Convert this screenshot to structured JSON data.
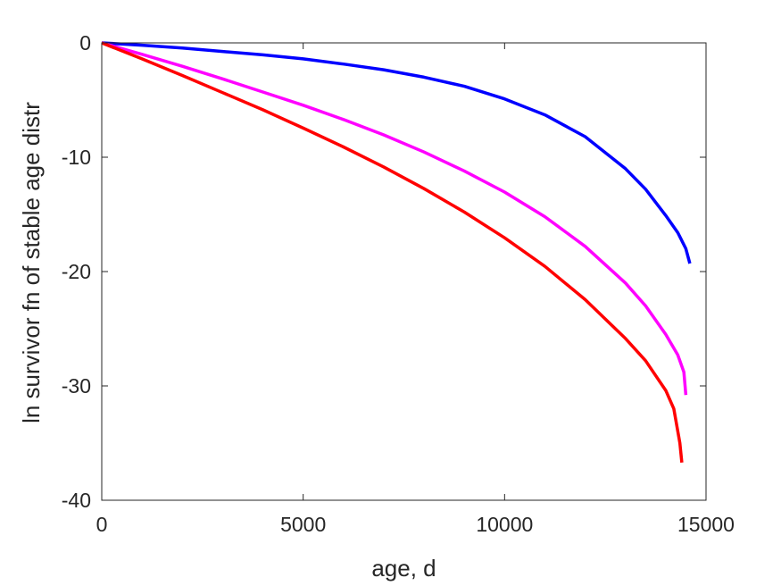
{
  "chart_data": {
    "type": "line",
    "title": "",
    "xlabel": "age, d",
    "ylabel": "ln survivor fn of stable age distr",
    "xlim": [
      0,
      15000
    ],
    "ylim": [
      -40,
      0
    ],
    "xticks": [
      0,
      5000,
      10000,
      15000
    ],
    "yticks": [
      0,
      -10,
      -20,
      -30,
      -40
    ],
    "xtick_labels": [
      "0",
      "5000",
      "10000",
      "15000"
    ],
    "ytick_labels": [
      "0",
      "-10",
      "-20",
      "-30",
      "-40"
    ],
    "grid": false,
    "series": [
      {
        "color": "#0000ff",
        "x": [
          0,
          1000,
          2000,
          3000,
          4000,
          5000,
          6000,
          7000,
          8000,
          9000,
          10000,
          11000,
          12000,
          13000,
          13500,
          14000,
          14300,
          14500,
          14600
        ],
        "y": [
          0,
          -0.2,
          -0.45,
          -0.75,
          -1.05,
          -1.4,
          -1.85,
          -2.35,
          -3.0,
          -3.8,
          -4.9,
          -6.3,
          -8.2,
          -11.0,
          -12.8,
          -15.1,
          -16.6,
          -18.0,
          -19.3
        ]
      },
      {
        "color": "#ff00ff",
        "x": [
          0,
          1000,
          2000,
          3000,
          4000,
          5000,
          6000,
          7000,
          8000,
          9000,
          10000,
          11000,
          12000,
          13000,
          13500,
          14000,
          14300,
          14450,
          14500
        ],
        "y": [
          0,
          -1.0,
          -2.05,
          -3.15,
          -4.3,
          -5.45,
          -6.7,
          -8.05,
          -9.55,
          -11.2,
          -13.05,
          -15.2,
          -17.8,
          -21.0,
          -23.0,
          -25.5,
          -27.3,
          -28.8,
          -30.8
        ]
      },
      {
        "color": "#ff0000",
        "x": [
          0,
          1000,
          2000,
          3000,
          4000,
          5000,
          6000,
          7000,
          8000,
          9000,
          10000,
          11000,
          12000,
          13000,
          13500,
          14000,
          14200,
          14350,
          14400
        ],
        "y": [
          0,
          -1.4,
          -2.85,
          -4.35,
          -5.85,
          -7.45,
          -9.1,
          -10.85,
          -12.75,
          -14.8,
          -17.05,
          -19.55,
          -22.45,
          -25.85,
          -27.8,
          -30.4,
          -32.0,
          -35.0,
          -36.7
        ]
      }
    ]
  }
}
